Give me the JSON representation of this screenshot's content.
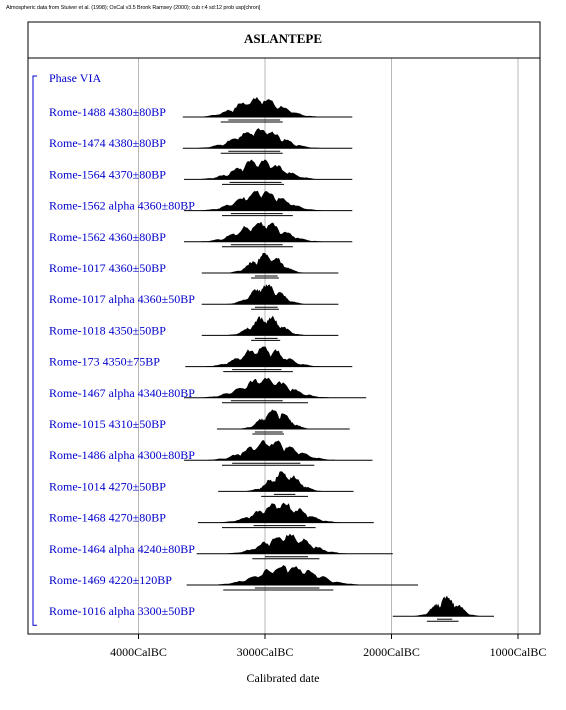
{
  "header_note": "Atmospheric data from Stuiver et al. (1998); OxCal v3.5 Bronk Ramsey (2000); cub r:4 sd:12 prob usp[chron]",
  "chart_data": {
    "type": "multiple-probability-distributions",
    "title": "ASLANTEPE",
    "xlabel": "Calibrated date",
    "x_unit": "CalBC",
    "xlim": [
      4900,
      850
    ],
    "x_ticks": [
      {
        "value": 4000,
        "label": "4000CalBC"
      },
      {
        "value": 3000,
        "label": "3000CalBC"
      },
      {
        "value": 2000,
        "label": "2000CalBC"
      },
      {
        "value": 1000,
        "label": "1000CalBC"
      }
    ],
    "grid": true,
    "phase_label": "Phase VIA",
    "accent_color": "#0000cc",
    "ink_color": "#000000",
    "series": [
      {
        "label": "Rome-1488  4380±80BP",
        "mean": 3050,
        "spread": 170,
        "range_start": 3650,
        "range_end": 2310,
        "sigma1": [
          3290,
          2880
        ],
        "sigma2": [
          3350,
          2860
        ]
      },
      {
        "label": "Rome-1474  4380±80BP",
        "mean": 3050,
        "spread": 170,
        "range_start": 3650,
        "range_end": 2310,
        "sigma1": [
          3290,
          2880
        ],
        "sigma2": [
          3350,
          2860
        ]
      },
      {
        "label": "Rome-1564  4370±80BP",
        "mean": 3040,
        "spread": 170,
        "range_start": 3640,
        "range_end": 2310,
        "sigma1": [
          3280,
          2870
        ],
        "sigma2": [
          3340,
          2850
        ]
      },
      {
        "label": "Rome-1562 alpha  4360±80BP",
        "mean": 3030,
        "spread": 170,
        "range_start": 3640,
        "range_end": 2310,
        "sigma1": [
          3270,
          2860
        ],
        "sigma2": [
          3340,
          2780
        ]
      },
      {
        "label": "Rome-1562   4360±80BP",
        "mean": 3030,
        "spread": 170,
        "range_start": 3640,
        "range_end": 2310,
        "sigma1": [
          3270,
          2860
        ],
        "sigma2": [
          3340,
          2780
        ]
      },
      {
        "label": "Rome-1017  4360±50BP",
        "mean": 2990,
        "spread": 110,
        "range_start": 3500,
        "range_end": 2420,
        "sigma1": [
          3080,
          2900
        ],
        "sigma2": [
          3110,
          2890
        ]
      },
      {
        "label": "Rome-1017 alpha  4360±50BP",
        "mean": 2990,
        "spread": 110,
        "range_start": 3500,
        "range_end": 2420,
        "sigma1": [
          3080,
          2900
        ],
        "sigma2": [
          3110,
          2890
        ]
      },
      {
        "label": "Rome-1018  4350±50BP",
        "mean": 2990,
        "spread": 110,
        "range_start": 3500,
        "range_end": 2420,
        "sigma1": [
          3080,
          2900
        ],
        "sigma2": [
          3110,
          2880
        ]
      },
      {
        "label": "Rome-173  4350±75BP",
        "mean": 3020,
        "spread": 160,
        "range_start": 3630,
        "range_end": 2310,
        "sigma1": [
          3260,
          2870
        ],
        "sigma2": [
          3330,
          2780
        ]
      },
      {
        "label": "Rome-1467 alpha  4340±80BP",
        "mean": 3000,
        "spread": 180,
        "range_start": 3640,
        "range_end": 2200,
        "sigma1": [
          3270,
          2860
        ],
        "sigma2": [
          3340,
          2660
        ]
      },
      {
        "label": "Rome-1015  4310±50BP",
        "mean": 2920,
        "spread": 100,
        "range_start": 3380,
        "range_end": 2330,
        "sigma1": [
          3080,
          2860
        ],
        "sigma2": [
          3100,
          2850
        ]
      },
      {
        "label": "Rome-1486 alpha  4300±80BP",
        "mean": 2950,
        "spread": 180,
        "range_start": 3640,
        "range_end": 2150,
        "sigma1": [
          3260,
          2720
        ],
        "sigma2": [
          3340,
          2610
        ]
      },
      {
        "label": "Rome-1014  4270±50BP",
        "mean": 2850,
        "spread": 110,
        "range_start": 3370,
        "range_end": 2300,
        "sigma1": [
          2930,
          2760
        ],
        "sigma2": [
          3030,
          2660
        ]
      },
      {
        "label": "Rome-1468  4270±80BP",
        "mean": 2880,
        "spread": 170,
        "range_start": 3530,
        "range_end": 2140,
        "sigma1": [
          3090,
          2680
        ],
        "sigma2": [
          3340,
          2600
        ]
      },
      {
        "label": "Rome-1464 alpha  4240±80BP",
        "mean": 2830,
        "spread": 170,
        "range_start": 3540,
        "range_end": 1990,
        "sigma1": [
          3000,
          2660
        ],
        "sigma2": [
          3100,
          2570
        ]
      },
      {
        "label": "Rome-1469  4220±120BP",
        "mean": 2820,
        "spread": 210,
        "range_start": 3620,
        "range_end": 1790,
        "sigma1": [
          3080,
          2570
        ],
        "sigma2": [
          3330,
          2460
        ]
      },
      {
        "label": "Rome-1016 alpha  3300±50BP",
        "mean": 1560,
        "spread": 90,
        "range_start": 1990,
        "range_end": 1190,
        "sigma1": [
          1640,
          1520
        ],
        "sigma2": [
          1720,
          1470
        ]
      }
    ]
  }
}
